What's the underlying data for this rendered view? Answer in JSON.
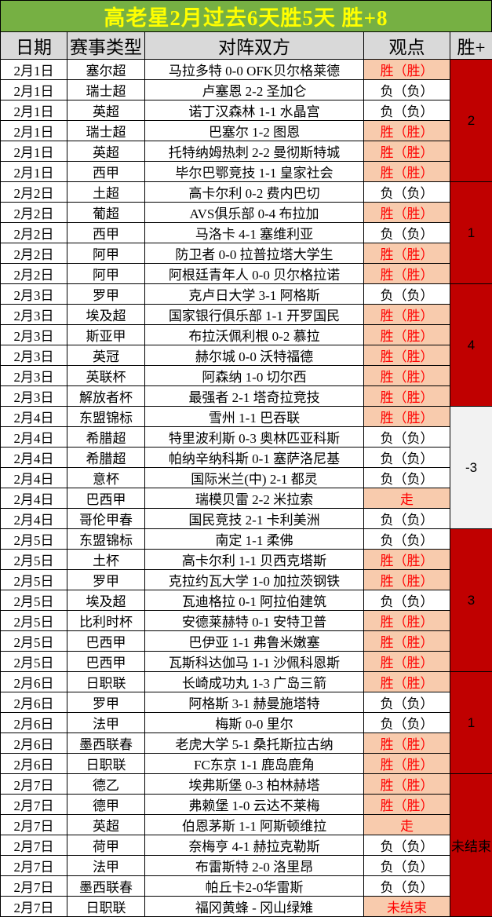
{
  "title": "高老星2月过去6天胜5天  胜+8",
  "columns": {
    "date": "日期",
    "league": "赛事类型",
    "match": "对阵双方",
    "view": "观点",
    "result": "胜+"
  },
  "colors": {
    "title_bg": "#76b043",
    "title_text": "#ffff00",
    "header_bg": "#d9d9d9",
    "highlight_bg": "#f8cbad",
    "highlight_text": "#fe0000",
    "result_bg": "#c00000",
    "result_neutral_bg": "#f2f2f2"
  },
  "groups": [
    {
      "date": "2月1日",
      "result": "2",
      "result_variant": "red",
      "rows": [
        {
          "league": "塞尔超",
          "match": "马拉多特 0-0 OFK贝尔格莱德",
          "view": "胜（胜）",
          "view_highlight": true
        },
        {
          "league": "瑞士超",
          "match": "卢塞恩 2-2 圣加仑",
          "view": "负（负）",
          "view_highlight": false
        },
        {
          "league": "英超",
          "match": "诺丁汉森林 1-1 水晶宫",
          "view": "负（负）",
          "view_highlight": false
        },
        {
          "league": "瑞士超",
          "match": "巴塞尔 1-2 图恩",
          "view": "胜（胜）",
          "view_highlight": true
        },
        {
          "league": "英超",
          "match": "托特纳姆热刺 2-2 曼彻斯特城",
          "view": "胜（胜）",
          "view_highlight": true
        },
        {
          "league": "西甲",
          "match": "毕尔巴鄂竞技 1-1 皇家社会",
          "view": "胜（胜）",
          "view_highlight": true
        }
      ]
    },
    {
      "date": "2月2日",
      "result": "1",
      "result_variant": "red",
      "rows": [
        {
          "league": "土超",
          "match": "高卡尔利 0-2 费内巴切",
          "view": "负（负）",
          "view_highlight": false
        },
        {
          "league": "葡超",
          "match": "AVS俱乐部 0-4 布拉加",
          "view": "胜（胜）",
          "view_highlight": true
        },
        {
          "league": "西甲",
          "match": "马洛卡 4-1 塞维利亚",
          "view": "负（负）",
          "view_highlight": false
        },
        {
          "league": "阿甲",
          "match": "防卫者 0-0 拉普拉塔大学生",
          "view": "胜（胜）",
          "view_highlight": true
        },
        {
          "league": "阿甲",
          "match": "阿根廷青年人 0-0 贝尔格拉诺",
          "view": "胜（胜）",
          "view_highlight": true
        }
      ]
    },
    {
      "date": "2月3日",
      "result": "4",
      "result_variant": "red",
      "rows": [
        {
          "league": "罗甲",
          "match": "克卢日大学 3-1 阿格斯",
          "view": "负（负）",
          "view_highlight": false
        },
        {
          "league": "埃及超",
          "match": "国家银行俱乐部 1-1 开罗国民",
          "view": "胜（胜）",
          "view_highlight": true
        },
        {
          "league": "斯亚甲",
          "match": "布拉沃佩利根 0-2 慕拉",
          "view": "胜（胜）",
          "view_highlight": true
        },
        {
          "league": "英冠",
          "match": "赫尔城 0-0 沃特福德",
          "view": "胜（胜）",
          "view_highlight": true
        },
        {
          "league": "英联杯",
          "match": "阿森纳 1-0 切尔西",
          "view": "胜（胜）",
          "view_highlight": true
        },
        {
          "league": "解放者杯",
          "match": "最强者 2-1 塔奇拉竞技",
          "view": "胜（胜）",
          "view_highlight": true
        }
      ]
    },
    {
      "date": "2月4日",
      "result": "-3",
      "result_variant": "gray",
      "rows": [
        {
          "league": "东盟锦标",
          "match": "雪州 1-1 巴吞联",
          "view": "胜（胜）",
          "view_highlight": true
        },
        {
          "league": "希腊超",
          "match": "特里波利斯 0-3 奥林匹亚科斯",
          "view": "负（负）",
          "view_highlight": false
        },
        {
          "league": "希腊超",
          "match": "帕纳辛纳科斯 0-1 塞萨洛尼基",
          "view": "负（负）",
          "view_highlight": false
        },
        {
          "league": "意杯",
          "match": "国际米兰(中) 2-1 都灵",
          "view": "负（负）",
          "view_highlight": false
        },
        {
          "league": "巴西甲",
          "match": "瑞模贝雷 2-2 米拉索",
          "view": "走",
          "view_highlight": true
        },
        {
          "league": "哥伦甲春",
          "match": "国民竞技 2-1 卡利美洲",
          "view": "负（负）",
          "view_highlight": false
        }
      ]
    },
    {
      "date": "2月5日",
      "result": "3",
      "result_variant": "red",
      "rows": [
        {
          "league": "东盟锦标",
          "match": "南定 1-1 柔佛",
          "view": "负（负）",
          "view_highlight": false
        },
        {
          "league": "土杯",
          "match": "高卡尔利 1-1 贝西克塔斯",
          "view": "胜（胜）",
          "view_highlight": true
        },
        {
          "league": "罗甲",
          "match": "克拉约瓦大学 1-0 加拉茨钢铁",
          "view": "胜（胜）",
          "view_highlight": true
        },
        {
          "league": "埃及超",
          "match": "瓦迪格拉 0-1 阿拉伯建筑",
          "view": "负（负）",
          "view_highlight": false
        },
        {
          "league": "比利时杯",
          "match": "安德莱赫特 0-1 安特卫普",
          "view": "胜（胜）",
          "view_highlight": true
        },
        {
          "league": "巴西甲",
          "match": "巴伊亚 1-1 弗鲁米嫩塞",
          "view": "胜（胜）",
          "view_highlight": true
        },
        {
          "league": "巴西甲",
          "match": "瓦斯科达伽马 1-1 沙佩科恩斯",
          "view": "胜（胜）",
          "view_highlight": true
        }
      ]
    },
    {
      "date": "2月6日",
      "result": "1",
      "result_variant": "red",
      "rows": [
        {
          "league": "日职联",
          "match": "长崎成功丸 1-3 广岛三箭",
          "view": "胜（胜）",
          "view_highlight": true
        },
        {
          "league": "罗甲",
          "match": "阿格斯 3-1 赫曼施塔特",
          "view": "负（负）",
          "view_highlight": false
        },
        {
          "league": "法甲",
          "match": "梅斯 0-0 里尔",
          "view": "负（负）",
          "view_highlight": false
        },
        {
          "league": "墨西联春",
          "match": "老虎大学 5-1 桑托斯拉古纳",
          "view": "胜（胜）",
          "view_highlight": true
        },
        {
          "league": "日职联",
          "match": "FC东京 1-1 鹿岛鹿角",
          "view": "胜（胜）",
          "view_highlight": true
        }
      ]
    },
    {
      "date": "2月7日",
      "result": "未结束",
      "result_variant": "red",
      "rows": [
        {
          "league": "德乙",
          "match": "埃弗斯堡 0-3 柏林赫塔",
          "view": "胜（胜）",
          "view_highlight": true
        },
        {
          "league": "德甲",
          "match": "弗赖堡 1-0 云达不莱梅",
          "view": "胜（胜）",
          "view_highlight": true
        },
        {
          "league": "英超",
          "match": "伯恩茅斯 1-1 阿斯顿维拉",
          "view": "走",
          "view_highlight": true
        },
        {
          "league": "荷甲",
          "match": "奈梅亨 4-1 赫拉克勒斯",
          "view": "负（负）",
          "view_highlight": false
        },
        {
          "league": "法甲",
          "match": "布雷斯特 2-0 洛里昂",
          "view": "负（负）",
          "view_highlight": false
        },
        {
          "league": "墨西联春",
          "match": "帕丘卡2-0华雷斯",
          "view": "负（负）",
          "view_highlight": false
        },
        {
          "league": "日职联",
          "match": "福冈黄蜂 - 冈山绿雉",
          "view": "未结束",
          "view_highlight": true
        }
      ]
    }
  ]
}
